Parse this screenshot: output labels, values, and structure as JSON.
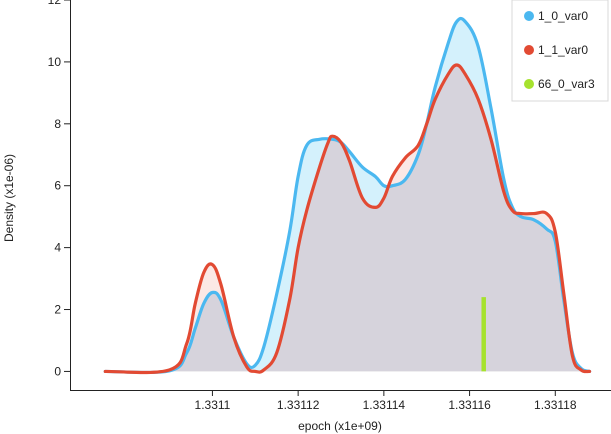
{
  "chart_data": {
    "type": "area",
    "title": "",
    "xlabel": "epoch (x1e+09)",
    "ylabel": "Density (x1e-06)",
    "xlim": [
      1.331067,
      1.331193
    ],
    "ylim": [
      -0.6,
      12
    ],
    "x_ticks": [
      {
        "value": 1.3311,
        "label": "1.3311"
      },
      {
        "value": 1.33112,
        "label": "1.33112"
      },
      {
        "value": 1.33114,
        "label": "1.33114"
      },
      {
        "value": 1.33116,
        "label": "1.33116"
      },
      {
        "value": 1.33118,
        "label": "1.33118"
      }
    ],
    "y_ticks": [
      {
        "value": 0,
        "label": "0"
      },
      {
        "value": 2,
        "label": "2"
      },
      {
        "value": 4,
        "label": "4"
      },
      {
        "value": 6,
        "label": "6"
      },
      {
        "value": 8,
        "label": "8"
      },
      {
        "value": 10,
        "label": "10"
      },
      {
        "value": 12,
        "label": "12"
      }
    ],
    "legend_position": "top-right",
    "grid": false,
    "series": [
      {
        "name": "1_0_var0",
        "color": "#4bb8f0",
        "fill": "#cdeefb",
        "x": [
          1.331075,
          1.33109,
          1.331094,
          1.331096,
          1.331098,
          1.3311,
          1.331102,
          1.331105,
          1.331108,
          1.33111,
          1.331112,
          1.331115,
          1.331118,
          1.33112,
          1.331122,
          1.331125,
          1.331128,
          1.33113,
          1.331132,
          1.331135,
          1.331138,
          1.33114,
          1.331142,
          1.331145,
          1.331148,
          1.33115,
          1.331152,
          1.331155,
          1.331157,
          1.331159,
          1.331162,
          1.331165,
          1.331168,
          1.33117,
          1.331172,
          1.331175,
          1.331178,
          1.33118,
          1.331182,
          1.331184,
          1.331186,
          1.331188
        ],
        "y": [
          0,
          0.02,
          0.6,
          1.4,
          2.2,
          2.55,
          2.3,
          1.1,
          0.25,
          0.2,
          0.8,
          2.5,
          4.5,
          6.3,
          7.3,
          7.5,
          7.5,
          7.4,
          7.1,
          6.6,
          6.3,
          6.0,
          6.0,
          6.2,
          7.0,
          8.0,
          9.2,
          10.6,
          11.3,
          11.3,
          10.5,
          8.5,
          6.2,
          5.3,
          5.0,
          4.9,
          4.6,
          4.2,
          2.3,
          0.6,
          0.1,
          0.0
        ]
      },
      {
        "name": "1_1_var0",
        "color": "#e24a33",
        "fill": "#f7d5d0",
        "x": [
          1.331075,
          1.33109,
          1.331094,
          1.331096,
          1.331098,
          1.3311,
          1.331102,
          1.331105,
          1.331108,
          1.33111,
          1.331112,
          1.331115,
          1.331118,
          1.33112,
          1.331122,
          1.331125,
          1.331127,
          1.331128,
          1.33113,
          1.331132,
          1.331135,
          1.331138,
          1.33114,
          1.331142,
          1.331145,
          1.331148,
          1.33115,
          1.331152,
          1.331155,
          1.331157,
          1.331159,
          1.331162,
          1.331165,
          1.331168,
          1.33117,
          1.331172,
          1.331175,
          1.331178,
          1.33118,
          1.331182,
          1.331184,
          1.331186,
          1.331188
        ],
        "y": [
          0,
          0.05,
          0.9,
          2.2,
          3.2,
          3.45,
          2.8,
          1.1,
          0.15,
          0.0,
          0.05,
          0.6,
          2.3,
          4.0,
          5.2,
          6.6,
          7.4,
          7.6,
          7.4,
          6.8,
          5.6,
          5.3,
          5.6,
          6.3,
          6.9,
          7.3,
          8.0,
          8.8,
          9.6,
          9.9,
          9.6,
          8.8,
          7.5,
          5.8,
          5.2,
          5.1,
          5.1,
          5.1,
          4.5,
          2.5,
          0.5,
          0.05,
          0.0
        ]
      },
      {
        "name": "66_0_var3",
        "color": "#a6e22e",
        "type": "rug",
        "x": [
          1.3311633
        ],
        "y_range": [
          0,
          2.4
        ]
      }
    ]
  }
}
